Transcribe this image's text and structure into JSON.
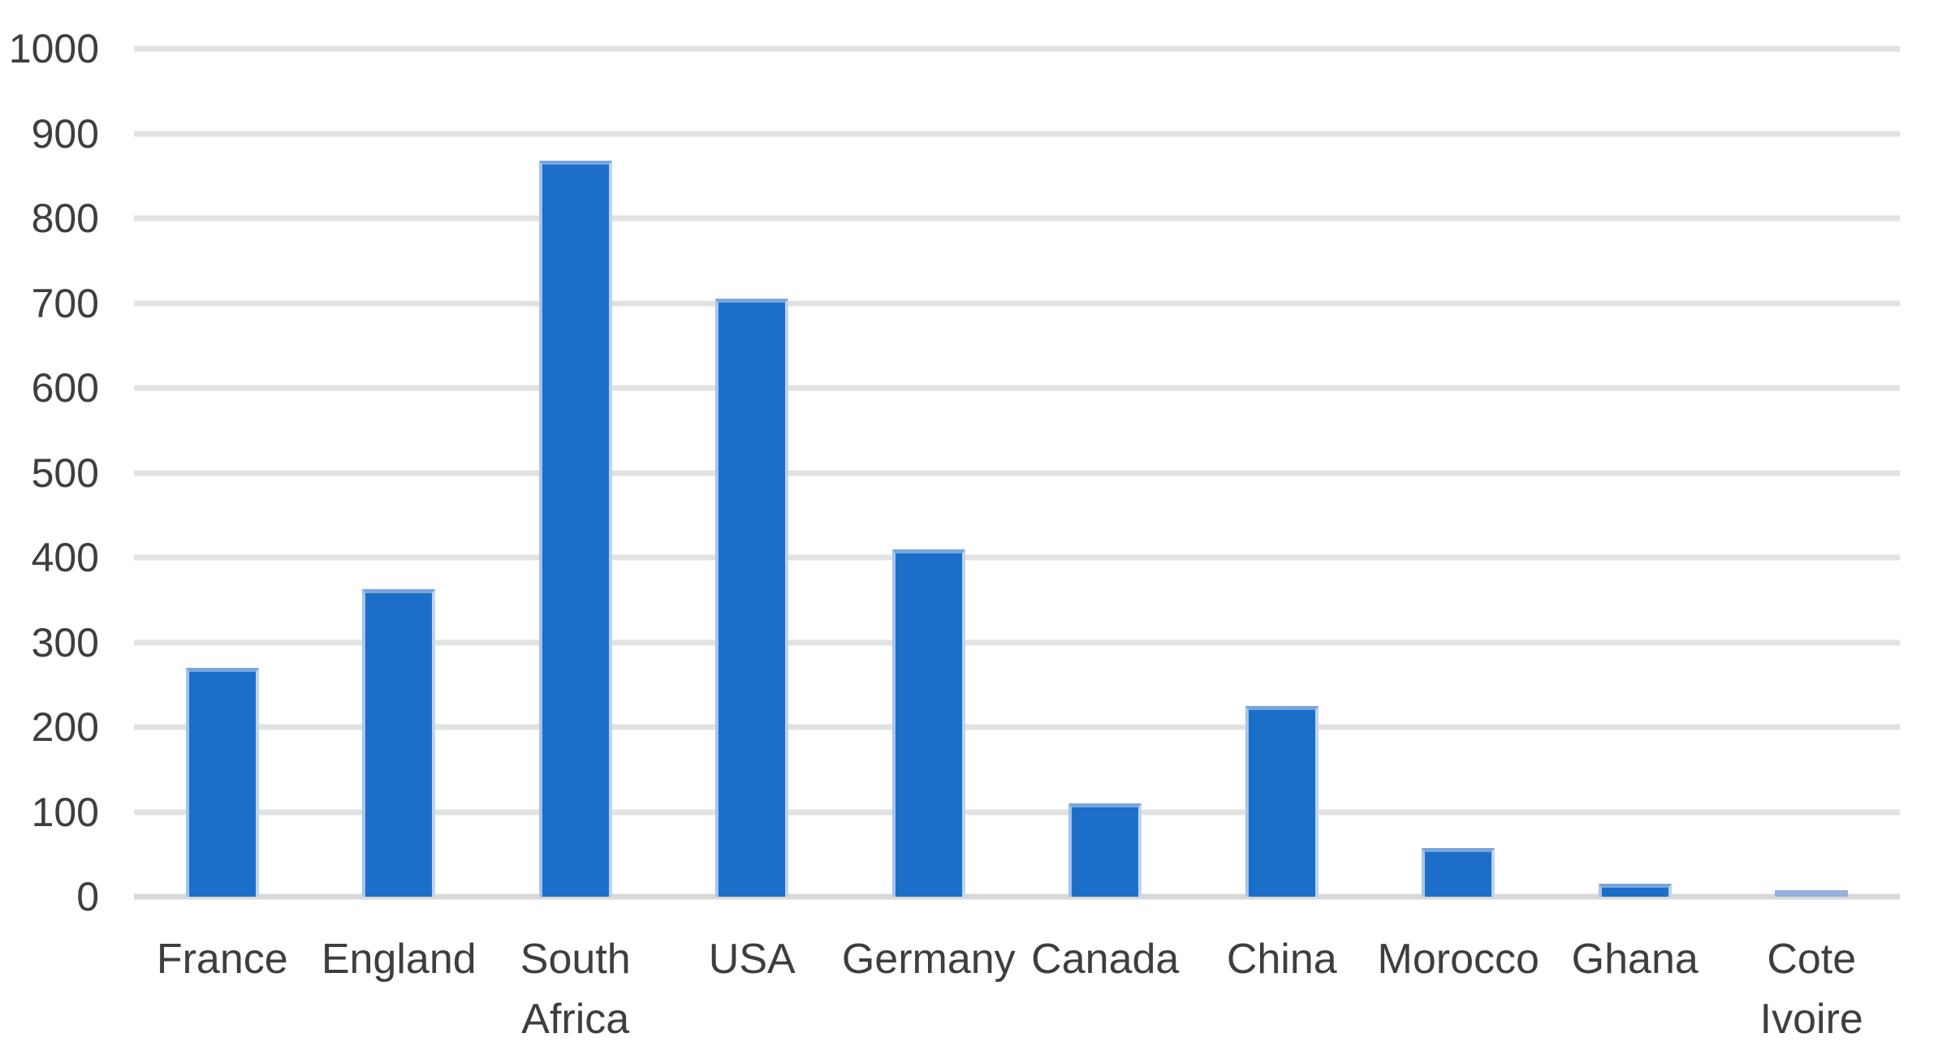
{
  "chart_data": {
    "type": "bar",
    "title": "",
    "xlabel": "",
    "ylabel": "",
    "categories": [
      "France",
      "England",
      "South\nAfrica",
      "USA",
      "Germany",
      "Canada",
      "China",
      "Morocco",
      "Ghana",
      "Cote\nIvoire"
    ],
    "values": [
      270,
      363,
      868,
      705,
      410,
      110,
      225,
      57,
      15,
      8
    ],
    "bar_colors": [
      "#1b6fc8",
      "#1b6fc8",
      "#1b6fc8",
      "#1b6fc8",
      "#1b6fc8",
      "#1b6fc8",
      "#1b6fc8",
      "#1b6fc8",
      "#1b6fc8",
      "#97b1dd"
    ],
    "ylim": [
      0,
      1000
    ],
    "ytick_step": 100,
    "y_ticks": [
      "1000",
      "900",
      "800",
      "700",
      "600",
      "500",
      "400",
      "300",
      "200",
      "100",
      "0"
    ],
    "grid": true,
    "legend_position": "none",
    "colors": {
      "bar": "#1b6fc8",
      "bar_light": "#97b1dd",
      "gridline": "#e2e2e2",
      "axis_line": "#d9d9d9",
      "tick_label": "#3e3e3e",
      "background": "#ffffff"
    }
  }
}
